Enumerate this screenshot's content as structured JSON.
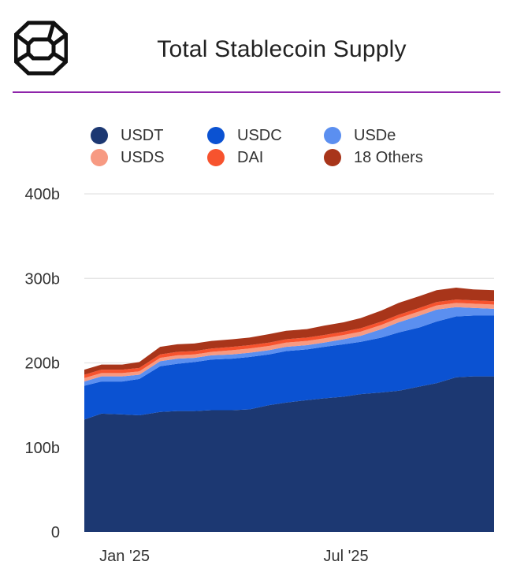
{
  "title": "Total Stablecoin Supply",
  "colors": {
    "accent_rule": "#8e24aa",
    "USDT": "#1c3872",
    "USDC": "#0b52d2",
    "USDe": "#5b8ff0",
    "USDS": "#f79a82",
    "DAI": "#f7532e",
    "18 Others": "#a8351a"
  },
  "legend": [
    {
      "label": "USDT",
      "color": "#1c3872"
    },
    {
      "label": "USDC",
      "color": "#0b52d2"
    },
    {
      "label": "USDe",
      "color": "#5b8ff0"
    },
    {
      "label": "USDS",
      "color": "#f79a82"
    },
    {
      "label": "DAI",
      "color": "#f7532e"
    },
    {
      "label": "18 Others",
      "color": "#a8351a"
    }
  ],
  "chart_data": {
    "type": "area",
    "stacked": true,
    "title": "Total Stablecoin Supply",
    "xlabel": "",
    "ylabel": "",
    "x": [
      "2024-12-01",
      "2024-12-15",
      "2025-01-01",
      "2025-01-15",
      "2025-02-01",
      "2025-02-15",
      "2025-03-01",
      "2025-03-15",
      "2025-04-01",
      "2025-04-15",
      "2025-05-01",
      "2025-05-15",
      "2025-06-01",
      "2025-06-15",
      "2025-07-01",
      "2025-07-15",
      "2025-08-01",
      "2025-08-15",
      "2025-09-01",
      "2025-09-15",
      "2025-10-01",
      "2025-10-15",
      "2025-11-01"
    ],
    "series": [
      {
        "name": "USDT",
        "values": [
          133,
          140,
          139,
          138,
          142,
          143,
          143,
          144,
          144,
          145,
          150,
          153,
          156,
          158,
          160,
          163,
          165,
          167,
          172,
          176,
          183,
          184,
          184
        ]
      },
      {
        "name": "USDC",
        "values": [
          40,
          38,
          39,
          43,
          54,
          56,
          58,
          60,
          61,
          62,
          60,
          61,
          60,
          61,
          62,
          62,
          65,
          69,
          70,
          73,
          72,
          72,
          72
        ]
      },
      {
        "name": "USDe",
        "values": [
          5,
          6,
          6,
          5,
          6,
          6,
          5,
          5,
          5,
          5,
          5,
          5,
          5,
          5,
          6,
          7,
          10,
          12,
          14,
          14,
          11,
          9,
          8
        ]
      },
      {
        "name": "USDS",
        "values": [
          4,
          4,
          4,
          4,
          4,
          4,
          4,
          4,
          5,
          5,
          5,
          5,
          5,
          5,
          5,
          5,
          5,
          5,
          5,
          5,
          5,
          5,
          5
        ]
      },
      {
        "name": "DAI",
        "values": [
          4,
          4,
          4,
          4,
          4,
          4,
          4,
          4,
          4,
          4,
          4,
          4,
          4,
          4,
          4,
          4,
          4,
          4,
          4,
          4,
          4,
          4,
          4
        ]
      },
      {
        "name": "18 Others",
        "values": [
          6,
          6,
          6,
          7,
          9,
          9,
          9,
          9,
          9,
          9,
          10,
          10,
          10,
          11,
          11,
          12,
          13,
          14,
          14,
          14,
          14,
          13,
          13
        ]
      }
    ],
    "y_ticks": [
      "0",
      "100b",
      "200b",
      "300b",
      "400b"
    ],
    "x_tick_labels": [
      {
        "x": "2025-01-01",
        "label": "Jan '25"
      },
      {
        "x": "2025-07-01",
        "label": "Jul '25"
      }
    ],
    "ylim": [
      0,
      400
    ],
    "xlim": [
      "2024-12-01",
      "2025-11-01"
    ],
    "grid": true,
    "legend_position": "top"
  }
}
